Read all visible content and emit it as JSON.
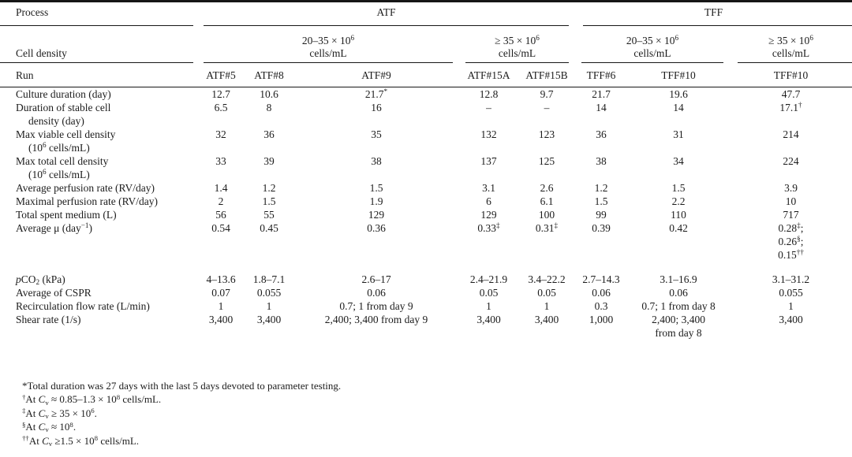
{
  "table": {
    "header": {
      "process_label": "Process",
      "cell_density_label": "Cell density",
      "run_label": "Run",
      "process_groups": [
        "ATF",
        "TFF"
      ],
      "density_groups": [
        "20–35 × 10^{6}|cells/mL",
        "≥ 35 × 10^{6}|cells/mL",
        "20–35 × 10^{6}|cells/mL",
        "≥ 35 × 10^{6}|cells/mL"
      ],
      "runs": [
        "ATF#5",
        "ATF#8",
        "ATF#9",
        "ATF#15A",
        "ATF#15B",
        "TFF#6",
        "TFF#10",
        "TFF#10"
      ]
    },
    "rows": [
      {
        "label": "Culture duration (day)",
        "values": [
          "12.7",
          "10.6",
          "21.7^{*}",
          "12.8",
          "9.7",
          "21.7",
          "19.6",
          "47.7"
        ]
      },
      {
        "label": "Duration of stable cell|density (day)",
        "values": [
          "6.5",
          "8",
          "16",
          "–",
          "–",
          "14",
          "14",
          "17.1^{†}"
        ]
      },
      {
        "label": "Max viable cell density|(10^{6} cells/mL)",
        "values": [
          "32",
          "36",
          "35",
          "132",
          "123",
          "36",
          "31",
          "214"
        ]
      },
      {
        "label": "Max total cell density|(10^{6} cells/mL)",
        "values": [
          "33",
          "39",
          "38",
          "137",
          "125",
          "38",
          "34",
          "224"
        ]
      },
      {
        "label": "Average perfusion rate (RV/day)",
        "values": [
          "1.4",
          "1.2",
          "1.5",
          "3.1",
          "2.6",
          "1.2",
          "1.5",
          "3.9"
        ]
      },
      {
        "label": "Maximal perfusion rate (RV/day)",
        "values": [
          "2",
          "1.5",
          "1.9",
          "6",
          "6.1",
          "1.5",
          "2.2",
          "10"
        ]
      },
      {
        "label": "Total spent medium (L)",
        "values": [
          "56",
          "55",
          "129",
          "129",
          "100",
          "99",
          "110",
          "717"
        ]
      },
      {
        "label": "Average μ (day^{−1})",
        "values": [
          "0.54",
          "0.45",
          "0.36",
          "0.33^{‡}",
          "0.31^{‡}",
          "0.39",
          "0.42",
          "0.28^{‡};|0.26^{§};|0.15^{††}"
        ]
      },
      {
        "spacer": true
      },
      {
        "label": "~{p}CO_{2} (kPa)",
        "values": [
          "4–13.6",
          "1.8–7.1",
          "2.6–17",
          "2.4–21.9",
          "3.4–22.2",
          "2.7–14.3",
          "3.1–16.9",
          "3.1–31.2"
        ]
      },
      {
        "label": "Average of CSPR",
        "values": [
          "0.07",
          "0.055",
          "0.06",
          "0.05",
          "0.05",
          "0.06",
          "0.06",
          "0.055"
        ]
      },
      {
        "label": "Recirculation flow rate (L/min)",
        "values": [
          "1",
          "1",
          "0.7; 1 from day 9",
          "1",
          "1",
          "0.3",
          "0.7; 1 from day 8",
          "1"
        ]
      },
      {
        "label": "Shear rate (1/s)",
        "values": [
          "3,400",
          "3,400",
          "2,400; 3,400 from day 9",
          "3,400",
          "3,400",
          "1,000",
          "2,400; 3,400|from day 8",
          "3,400"
        ]
      }
    ],
    "footnotes": [
      "*Total duration was 27 days with the last 5 days devoted to parameter testing.",
      "^{†}At ~{C}_{v} ≈ 0.85–1.3 × 10^{8} cells/mL.",
      "^{‡}At ~{C}_{v} ≥ 35 × 10^{6}.",
      "^{§}At ~{C}_{v} ≈ 10^{8}.",
      "^{††}At ~{C}_{v} ≥1.5 × 10^{8} cells/mL."
    ]
  }
}
